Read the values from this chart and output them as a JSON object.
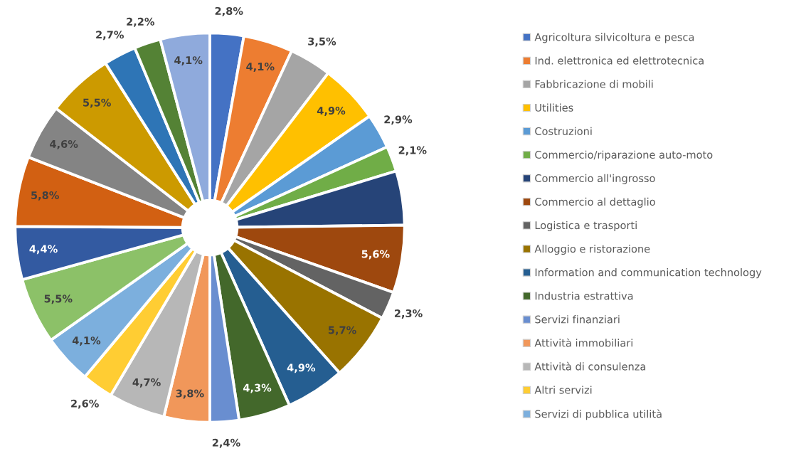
{
  "chart_data": {
    "type": "donut",
    "categories": [
      "Agricoltura silvicoltura e pesca",
      "Ind. elettronica ed elettrotecnica",
      "Fabbricazione di mobili",
      "Utilities",
      "Costruzioni",
      "Commercio/riparazione auto-moto",
      "Commercio all'ingrosso",
      "Commercio al dettaglio",
      "Logistica e trasporti",
      "Alloggio e ristorazione",
      "Information and communication technology",
      "Industria estrattiva",
      "Servizi finanziari",
      "Attività immobiliari",
      "Attività di consulenza",
      "Altri servizi",
      "Servizi di pubblica utilità",
      null,
      null,
      null,
      null,
      null,
      null,
      null,
      null
    ],
    "values": [
      2.8,
      4.1,
      3.5,
      4.9,
      2.9,
      2.1,
      4.5,
      5.6,
      2.3,
      5.7,
      4.9,
      4.3,
      2.4,
      3.8,
      4.7,
      2.6,
      4.1,
      5.5,
      4.4,
      5.8,
      4.6,
      5.5,
      2.7,
      2.2,
      4.1
    ],
    "colors": [
      "#4472c4",
      "#ed7d31",
      "#a5a5a5",
      "#ffc000",
      "#5b9bd5",
      "#70ad47",
      "#264478",
      "#9e480e",
      "#636363",
      "#997300",
      "#255e91",
      "#43682b",
      "#698ed0",
      "#f1975a",
      "#b7b7b7",
      "#ffcd33",
      "#7cafdd",
      "#8cc168",
      "#335aa1",
      "#d26012",
      "#848484",
      "#cc9a00",
      "#2e75b6",
      "#548235",
      "#8faadc"
    ],
    "value_labels": [
      "2,8%",
      "4,1%",
      "3,5%",
      "4,9%",
      "2,9%",
      "2,1%",
      null,
      "5,6%",
      "2,3%",
      "5,7%",
      "4,9%",
      "4,3%",
      "2,4%",
      "3,8%",
      "4,7%",
      "2,6%",
      "4,1%",
      "5,5%",
      "4,4%",
      "5,8%",
      "4,6%",
      "5,5%",
      "2,7%",
      "2,2%",
      "4,1%"
    ],
    "legend": "right"
  }
}
